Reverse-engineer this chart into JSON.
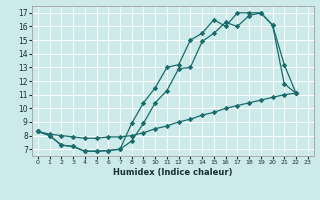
{
  "xlabel": "Humidex (Indice chaleur)",
  "bg_color": "#cceaea",
  "grid_color": "#ffffff",
  "line_color": "#1a6b6b",
  "xlim": [
    -0.5,
    23.5
  ],
  "ylim": [
    6.5,
    17.5
  ],
  "xticks": [
    0,
    1,
    2,
    3,
    4,
    5,
    6,
    7,
    8,
    9,
    10,
    11,
    12,
    13,
    14,
    15,
    16,
    17,
    18,
    19,
    20,
    21,
    22,
    23
  ],
  "yticks": [
    7,
    8,
    9,
    10,
    11,
    12,
    13,
    14,
    15,
    16,
    17
  ],
  "curve_mid_x": [
    0,
    1,
    2,
    3,
    4,
    5,
    6,
    7,
    8,
    9,
    10,
    11,
    12,
    13,
    14,
    15,
    16,
    17,
    18,
    19,
    20,
    21,
    22
  ],
  "curve_mid_y": [
    8.3,
    8.0,
    7.3,
    7.2,
    6.85,
    6.85,
    6.9,
    7.0,
    7.6,
    8.9,
    10.4,
    11.3,
    12.9,
    13.0,
    14.9,
    15.5,
    16.3,
    16.0,
    16.8,
    17.0,
    16.1,
    11.8,
    11.1
  ],
  "curve_top_x": [
    0,
    1,
    2,
    3,
    4,
    5,
    6,
    7,
    8,
    9,
    10,
    11,
    12,
    13,
    14,
    15,
    16,
    17,
    18,
    19,
    20,
    21,
    22
  ],
  "curve_top_y": [
    8.3,
    8.0,
    7.3,
    7.2,
    6.85,
    6.85,
    6.9,
    7.0,
    8.9,
    10.4,
    11.5,
    13.0,
    13.2,
    15.0,
    15.5,
    16.5,
    16.0,
    17.0,
    17.0,
    17.0,
    16.1,
    13.2,
    11.1
  ],
  "curve_low_x": [
    0,
    1,
    2,
    3,
    4,
    5,
    6,
    7,
    8,
    9,
    10,
    11,
    12,
    13,
    14,
    15,
    16,
    17,
    18,
    19,
    20,
    21,
    22
  ],
  "curve_low_y": [
    8.3,
    8.1,
    8.0,
    7.9,
    7.8,
    7.8,
    7.9,
    7.9,
    8.0,
    8.2,
    8.5,
    8.7,
    9.0,
    9.2,
    9.5,
    9.7,
    10.0,
    10.2,
    10.4,
    10.6,
    10.8,
    11.0,
    11.1
  ]
}
